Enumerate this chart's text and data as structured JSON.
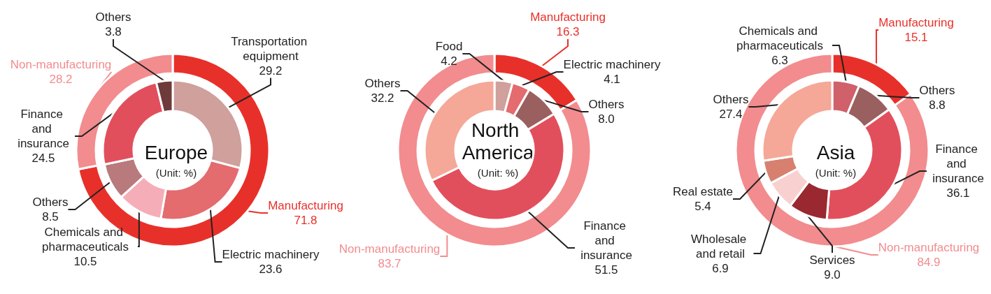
{
  "chart_data": [
    {
      "type": "donut",
      "title": "Europe",
      "subtitle": "(Unit: %)",
      "categories": [
        "Manufacturing",
        "Non-manufacturing"
      ],
      "values": [
        71.8,
        28.2
      ],
      "colors": [
        "#e8302a",
        "#f28c8e"
      ],
      "value_labels": [
        "71.8",
        "28.2"
      ]
    },
    {
      "type": "donut",
      "categories": [
        "Transportation equipment",
        "Electric machinery",
        "Chemicals and pharmaceuticals",
        "Others",
        "Finance and insurance",
        "Others"
      ],
      "values": [
        29.2,
        23.6,
        10.5,
        8.5,
        24.5,
        3.8
      ],
      "colors": [
        "#cfa09c",
        "#e46b6e",
        "#f5aeb8",
        "#b87a7c",
        "#e24f5c",
        "#6e3a3a"
      ],
      "value_labels": [
        "29.2",
        "23.6",
        "10.5",
        "8.5",
        "24.5",
        "3.8"
      ]
    },
    {
      "type": "donut",
      "title": "North America",
      "subtitle": "(Unit: %)",
      "categories": [
        "Manufacturing",
        "Non-manufacturing"
      ],
      "values": [
        16.3,
        83.7
      ],
      "colors": [
        "#e8302a",
        "#f28c8e"
      ],
      "value_labels": [
        "16.3",
        "83.7"
      ]
    },
    {
      "type": "donut",
      "categories": [
        "Food",
        "Electric machinery",
        "Others",
        "Finance and insurance",
        "Others"
      ],
      "values": [
        4.2,
        4.1,
        8.0,
        51.5,
        32.2
      ],
      "colors": [
        "#cfa09c",
        "#e46b6e",
        "#9a6060",
        "#e24f5c",
        "#f5a898"
      ],
      "value_labels": [
        "4.2",
        "4.1",
        "8.0",
        "51.5",
        "32.2"
      ]
    },
    {
      "type": "donut",
      "title": "Asia",
      "subtitle": "(Unit: %)",
      "categories": [
        "Manufacturing",
        "Non-manufacturing"
      ],
      "values": [
        15.1,
        84.9
      ],
      "colors": [
        "#e8302a",
        "#f28c8e"
      ],
      "value_labels": [
        "15.1",
        "84.9"
      ]
    },
    {
      "type": "donut",
      "categories": [
        "Chemicals and pharmaceuticals",
        "Others",
        "Finance and insurance",
        "Services",
        "Wholesale and retail",
        "Real estate",
        "Others"
      ],
      "values": [
        6.3,
        8.8,
        36.1,
        9.0,
        6.9,
        5.4,
        27.4
      ],
      "colors": [
        "#d0606a",
        "#9a6060",
        "#e24f5c",
        "#9a2830",
        "#f8d0d0",
        "#d88070",
        "#f5a898"
      ],
      "value_labels": [
        "6.3",
        "8.8",
        "36.1",
        "9.0",
        "6.9",
        "5.4",
        "27.4"
      ]
    }
  ]
}
